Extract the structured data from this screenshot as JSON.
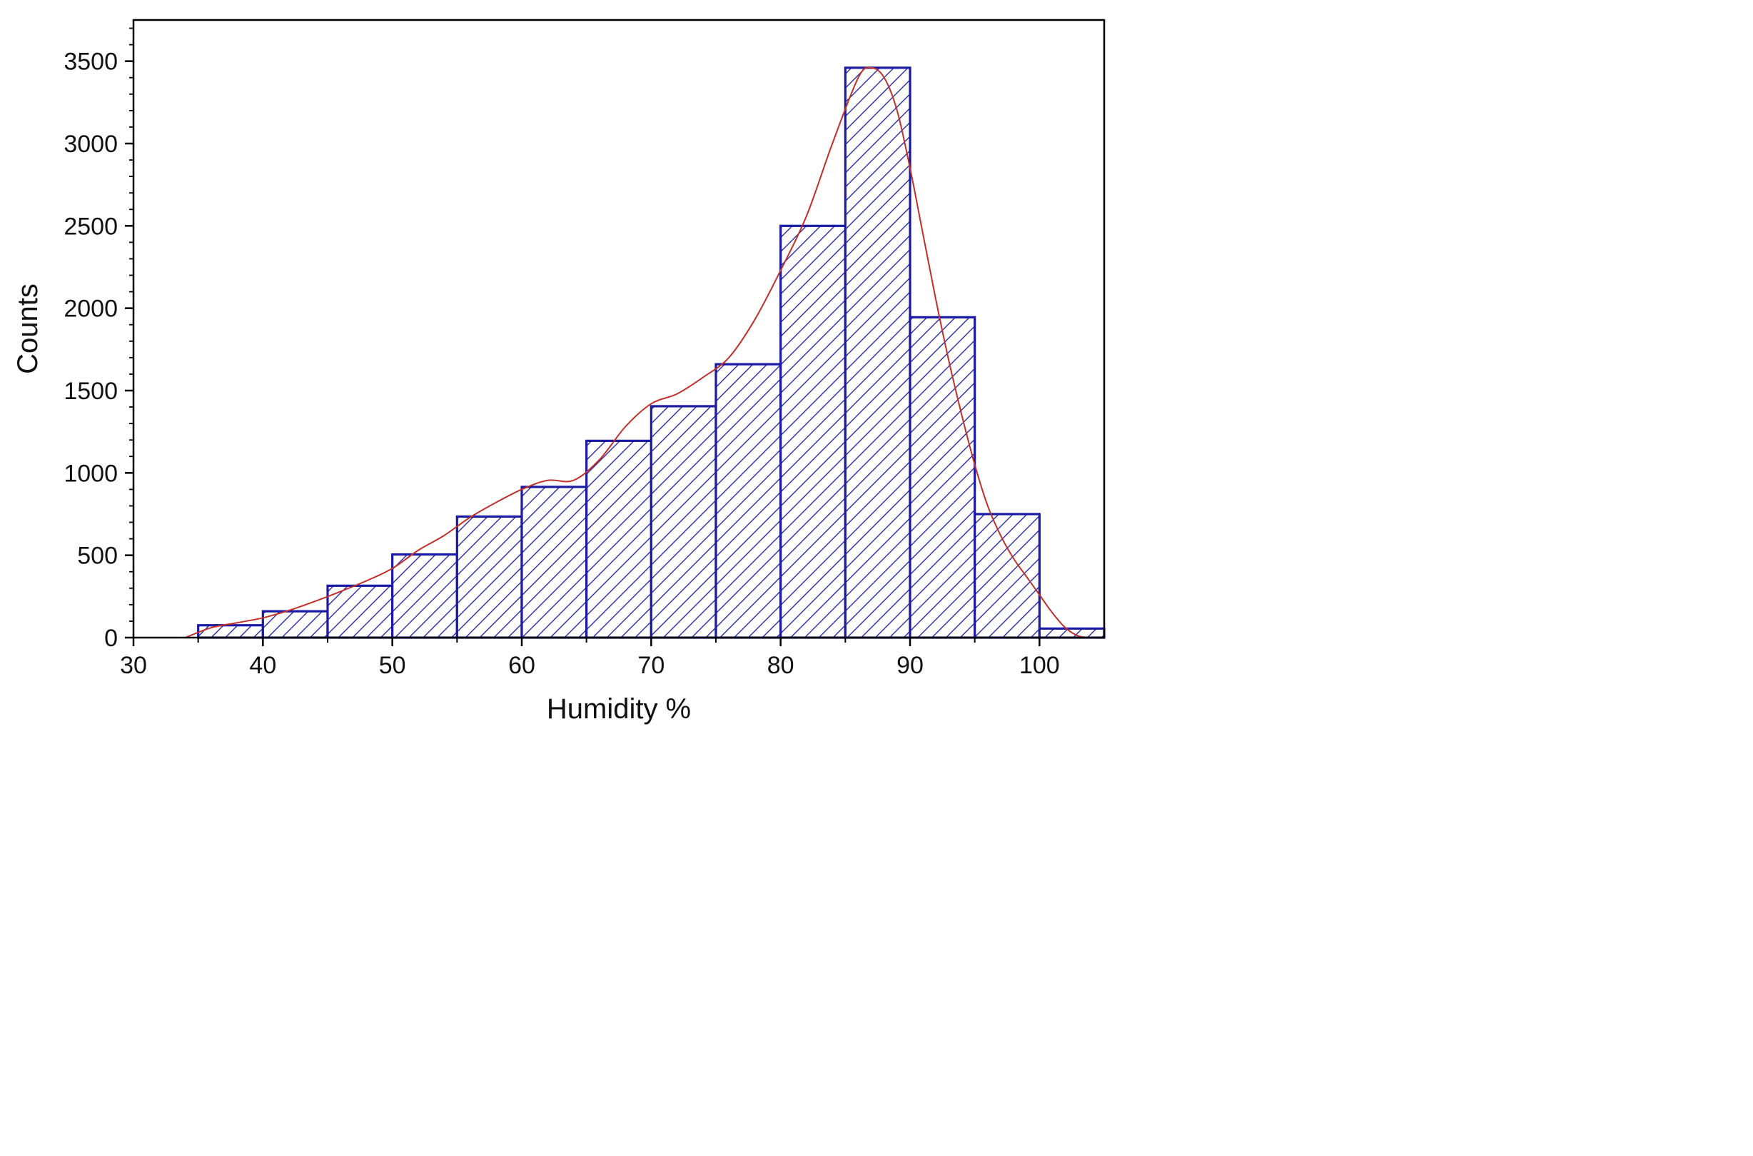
{
  "chart_data": {
    "type": "bar",
    "subtype": "histogram",
    "title": "",
    "xlabel": "Humidity %",
    "ylabel": "Counts",
    "xlim": [
      30,
      105
    ],
    "ylim": [
      0,
      3750
    ],
    "x_ticks": [
      {
        "value": 30,
        "label": "30"
      },
      {
        "value": 40,
        "label": "40"
      },
      {
        "value": 50,
        "label": "50"
      },
      {
        "value": 60,
        "label": "60"
      },
      {
        "value": 70,
        "label": "70"
      },
      {
        "value": 80,
        "label": "80"
      },
      {
        "value": 90,
        "label": "90"
      },
      {
        "value": 100,
        "label": "100"
      }
    ],
    "y_ticks": [
      {
        "value": 0,
        "label": "0"
      },
      {
        "value": 500,
        "label": "500"
      },
      {
        "value": 1000,
        "label": "1000"
      },
      {
        "value": 1500,
        "label": "1500"
      },
      {
        "value": 2000,
        "label": "2000"
      },
      {
        "value": 2500,
        "label": "2500"
      },
      {
        "value": 3000,
        "label": "3000"
      },
      {
        "value": 3500,
        "label": "3500"
      }
    ],
    "bins": [
      {
        "start": 35,
        "end": 40,
        "count": 75
      },
      {
        "start": 40,
        "end": 45,
        "count": 160
      },
      {
        "start": 45,
        "end": 50,
        "count": 315
      },
      {
        "start": 50,
        "end": 55,
        "count": 505
      },
      {
        "start": 55,
        "end": 60,
        "count": 735
      },
      {
        "start": 60,
        "end": 65,
        "count": 915
      },
      {
        "start": 65,
        "end": 70,
        "count": 1195
      },
      {
        "start": 70,
        "end": 75,
        "count": 1405
      },
      {
        "start": 75,
        "end": 80,
        "count": 1660
      },
      {
        "start": 80,
        "end": 85,
        "count": 2500
      },
      {
        "start": 85,
        "end": 90,
        "count": 3460
      },
      {
        "start": 90,
        "end": 95,
        "count": 1945
      },
      {
        "start": 95,
        "end": 100,
        "count": 750
      },
      {
        "start": 100,
        "end": 105,
        "count": 55
      }
    ],
    "fit_curve": {
      "points": [
        [
          34,
          0
        ],
        [
          36,
          60
        ],
        [
          38,
          90
        ],
        [
          40,
          120
        ],
        [
          42,
          165
        ],
        [
          44,
          220
        ],
        [
          46,
          280
        ],
        [
          48,
          345
        ],
        [
          50,
          420
        ],
        [
          52,
          530
        ],
        [
          54,
          620
        ],
        [
          56,
          730
        ],
        [
          58,
          820
        ],
        [
          60,
          900
        ],
        [
          62,
          955
        ],
        [
          64,
          955
        ],
        [
          66,
          1080
        ],
        [
          68,
          1280
        ],
        [
          70,
          1420
        ],
        [
          72,
          1480
        ],
        [
          74,
          1580
        ],
        [
          76,
          1700
        ],
        [
          78,
          1930
        ],
        [
          80,
          2230
        ],
        [
          82,
          2560
        ],
        [
          84,
          3000
        ],
        [
          86,
          3400
        ],
        [
          87,
          3460
        ],
        [
          88,
          3400
        ],
        [
          89,
          3200
        ],
        [
          90,
          2850
        ],
        [
          91,
          2450
        ],
        [
          92,
          2050
        ],
        [
          93,
          1680
        ],
        [
          94,
          1350
        ],
        [
          95,
          1050
        ],
        [
          96,
          800
        ],
        [
          97,
          620
        ],
        [
          98,
          480
        ],
        [
          99,
          370
        ],
        [
          100,
          260
        ],
        [
          101,
          150
        ],
        [
          102,
          60
        ],
        [
          103,
          10
        ],
        [
          104,
          0
        ]
      ]
    },
    "colors": {
      "bar_edge": "#1a1aa6",
      "hatch": "#1a1aa6",
      "bar_fill": "#ffffff",
      "fit_line": "#c0302a",
      "axes": "#000000"
    },
    "grid": false,
    "legend": "none"
  }
}
